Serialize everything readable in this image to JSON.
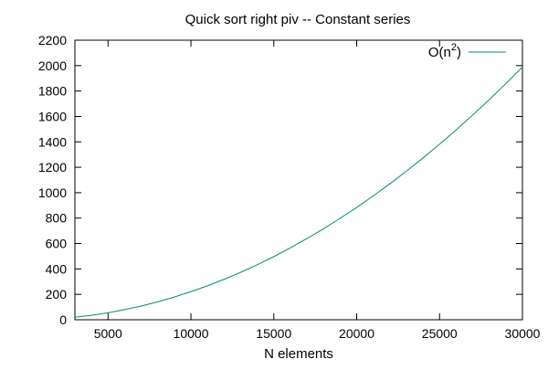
{
  "chart_data": {
    "type": "line",
    "title": "Quick sort right piv -- Constant series",
    "xlabel": "N elements",
    "ylabel": "",
    "xlim": [
      3000,
      30000
    ],
    "ylim": [
      0,
      2200
    ],
    "xticks": [
      5000,
      10000,
      15000,
      20000,
      25000,
      30000
    ],
    "yticks": [
      0,
      200,
      400,
      600,
      800,
      1000,
      1200,
      1400,
      1600,
      1800,
      2000,
      2200
    ],
    "grid": false,
    "legend_position": "top-right",
    "series": [
      {
        "name": "O(n²)",
        "legend_base": "O(n",
        "legend_sup": "2",
        "legend_tail": ")",
        "color": "#008b76",
        "x": [
          3000,
          4000,
          5000,
          6000,
          7000,
          8000,
          9000,
          10000,
          11000,
          12000,
          13000,
          14000,
          15000,
          16000,
          17000,
          18000,
          19000,
          20000,
          21000,
          22000,
          23000,
          24000,
          25000,
          26000,
          27000,
          28000,
          29000,
          30000
        ],
        "y": [
          20,
          35,
          55,
          80,
          108,
          141,
          179,
          221,
          267,
          318,
          373,
          433,
          497,
          566,
          639,
          716,
          798,
          884,
          975,
          1070,
          1169,
          1273,
          1381,
          1494,
          1611,
          1732,
          1858,
          1989
        ]
      }
    ]
  }
}
